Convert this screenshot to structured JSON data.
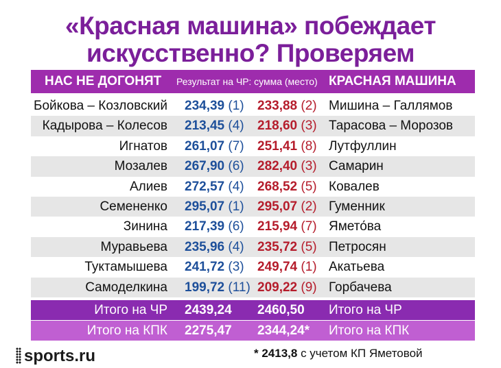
{
  "title": {
    "line1": "«Красная машина» побеждает",
    "line2": "искусственно? Проверяем"
  },
  "header": {
    "left": "НАС НЕ ДОГОНЯТ",
    "middle": "Результат на ЧР: сумма (место)",
    "right": "КРАСНАЯ МАШИНА"
  },
  "rows": [
    {
      "left_name": "Бойкова – Козловский",
      "left_points": "234,39",
      "left_place": "(1)",
      "right_points": "233,88",
      "right_place": "(2)",
      "right_name": "Мишина – Галлямов"
    },
    {
      "left_name": "Кадырова – Колесов",
      "left_points": "213,45",
      "left_place": "(4)",
      "right_points": "218,60",
      "right_place": "(3)",
      "right_name": "Тарасова – Морозов"
    },
    {
      "left_name": "Игнатов",
      "left_points": "261,07",
      "left_place": "(7)",
      "right_points": "251,41",
      "right_place": "(8)",
      "right_name": "Лутфуллин"
    },
    {
      "left_name": "Мозалев",
      "left_points": "267,90",
      "left_place": "(6)",
      "right_points": "282,40",
      "right_place": "(3)",
      "right_name": "Самарин"
    },
    {
      "left_name": "Алиев",
      "left_points": "272,57",
      "left_place": "(4)",
      "right_points": "268,52",
      "right_place": "(5)",
      "right_name": "Ковалев"
    },
    {
      "left_name": "Семененко",
      "left_points": "295,07",
      "left_place": "(1)",
      "right_points": "295,07",
      "right_place": "(2)",
      "right_name": "Гуменник"
    },
    {
      "left_name": "Зинина",
      "left_points": "217,39",
      "left_place": "(6)",
      "right_points": "215,94",
      "right_place": "(7)",
      "right_name": "Ямето́ва"
    },
    {
      "left_name": "Муравьева",
      "left_points": "235,96",
      "left_place": "(4)",
      "right_points": "235,72",
      "right_place": "(5)",
      "right_name": "Петросян"
    },
    {
      "left_name": "Туктамышева",
      "left_points": "241,72",
      "left_place": "(3)",
      "right_points": "249,74",
      "right_place": "(1)",
      "right_name": "Акатьева"
    },
    {
      "left_name": "Самоделкина",
      "left_points": "199,72",
      "left_place": "(11)",
      "right_points": "209,22",
      "right_place": "(9)",
      "right_name": "Горбачева"
    }
  ],
  "totals": [
    {
      "left_label": "Итого на ЧР",
      "left_value": "2439,24",
      "right_value": "2460,50",
      "right_label": "Итого на ЧР"
    },
    {
      "left_label": "Итого на КПК",
      "left_value": "2275,47",
      "right_value": "2344,24*",
      "right_label": "Итого на КПК"
    }
  ],
  "footer": {
    "logo": "sports.ru",
    "note_value": "* 2413,8",
    "note_text": " с учетом КП Яметовой"
  },
  "colors": {
    "title": "#7b1f9a",
    "header_bg": "#9e2cad",
    "total_chr_bg": "#8a2bb0",
    "total_kpk_bg": "#c05fd2",
    "left_points": "#1d4f9a",
    "right_points": "#b51c2b",
    "alt_row_bg": "#e6e6e6"
  }
}
